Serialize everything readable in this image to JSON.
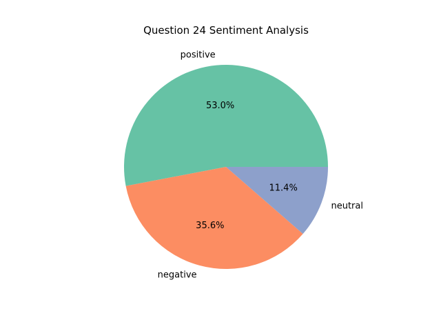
{
  "chart_data": {
    "type": "pie",
    "title": "Question 24 Sentiment Analysis",
    "categories": [
      "positive",
      "negative",
      "neutral"
    ],
    "values": [
      53.0,
      35.6,
      11.4
    ],
    "percent_labels": [
      "53.0%",
      "35.6%",
      "11.4%"
    ],
    "colors": [
      "#66c2a5",
      "#fc8d62",
      "#8da0cb"
    ],
    "start_angle_deg": 0,
    "direction": "counterclockwise",
    "legend": "none"
  }
}
